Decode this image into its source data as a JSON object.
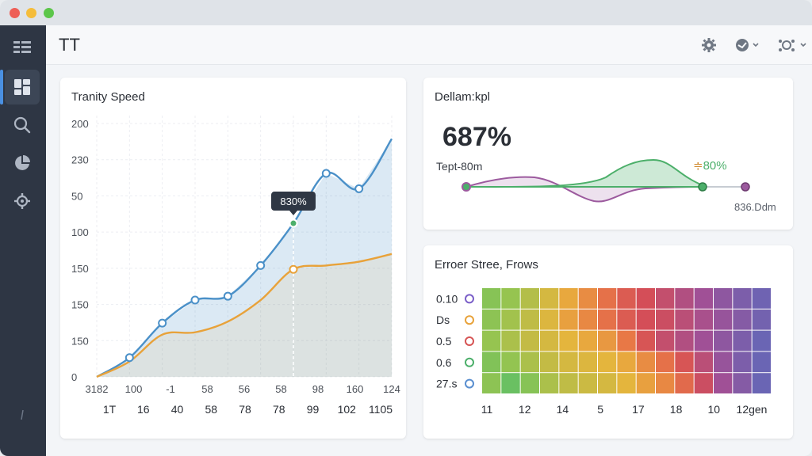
{
  "app": {
    "title": "TT"
  },
  "header": {
    "icons": [
      "gear-icon",
      "user-menu-icon",
      "network-icon"
    ]
  },
  "sidebar": {
    "items": [
      "menu-icon",
      "dashboard-icon",
      "search-icon",
      "pie-chart-icon",
      "settings-icon",
      "drag-handle-icon"
    ]
  },
  "speed_card": {
    "title": "Tranity Speed",
    "tooltip": "830%",
    "y_labels": [
      "200",
      "230",
      "50",
      "100",
      "150",
      "150",
      "150",
      "0"
    ],
    "x_labels_top": [
      "3182",
      "100",
      "-1",
      "58",
      "56",
      "58",
      "98",
      "160",
      "124"
    ],
    "x_labels_bottom": [
      "1T",
      "16",
      "40",
      "58",
      "78",
      "78",
      "99",
      "102",
      "1105"
    ]
  },
  "kpi_card": {
    "title": "Dellam:kpl",
    "value": "687%",
    "sublabel": "Tept-80m",
    "badge": "80%",
    "foot": "836.Ddm",
    "colors": {
      "green": "#4caf6a",
      "purple": "#9c5a9e"
    }
  },
  "heatmap_card": {
    "title": "Erroer Stree, Frows",
    "row_labels": [
      "0.10",
      "Ds",
      "0.5",
      "0.6",
      "27.s"
    ],
    "col_labels": [
      "11",
      "12",
      "14",
      "5",
      "17",
      "18",
      "10",
      "12gen"
    ]
  },
  "chart_data": [
    {
      "type": "area",
      "title": "Tranity Speed",
      "x": [
        1,
        2,
        3,
        4,
        5,
        6,
        7,
        8,
        9,
        10
      ],
      "series": [
        {
          "values": [
            0,
            25,
            70,
            100,
            105,
            145,
            200,
            265,
            245,
            310
          ],
          "color": "#4a90c8"
        },
        {
          "values": [
            0,
            20,
            55,
            58,
            72,
            100,
            140,
            145,
            150,
            160
          ],
          "color": "#e8a23a"
        }
      ],
      "ylim": [
        0,
        330
      ],
      "grid": true,
      "highlight_index": 6
    },
    {
      "type": "heatmap",
      "title": "Erroer Stree, Frows",
      "rows": 5,
      "cols": 15,
      "values": [
        [
          0.2,
          0.25,
          0.32,
          0.4,
          0.48,
          0.55,
          0.62,
          0.68,
          0.72,
          0.76,
          0.8,
          0.84,
          0.88,
          0.92,
          0.95
        ],
        [
          0.22,
          0.28,
          0.35,
          0.42,
          0.5,
          0.56,
          0.62,
          0.68,
          0.72,
          0.74,
          0.78,
          0.82,
          0.86,
          0.9,
          0.94
        ],
        [
          0.25,
          0.3,
          0.36,
          0.4,
          0.44,
          0.48,
          0.52,
          0.6,
          0.7,
          0.76,
          0.8,
          0.84,
          0.88,
          0.92,
          0.96
        ],
        [
          0.18,
          0.24,
          0.3,
          0.36,
          0.4,
          0.42,
          0.44,
          0.48,
          0.55,
          0.62,
          0.7,
          0.78,
          0.86,
          0.92,
          0.96
        ],
        [
          0.22,
          0.1,
          0.2,
          0.3,
          0.35,
          0.38,
          0.4,
          0.44,
          0.5,
          0.56,
          0.64,
          0.74,
          0.84,
          0.9,
          0.96
        ]
      ]
    }
  ]
}
